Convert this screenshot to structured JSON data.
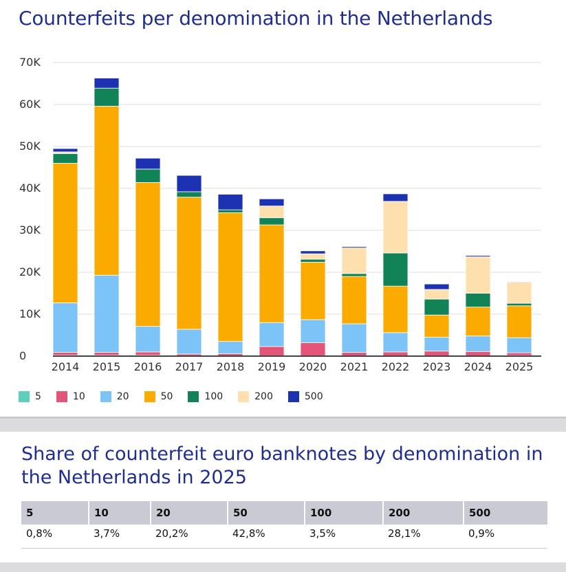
{
  "chart_title": "Counterfeits per denomination in the Netherlands",
  "colors": {
    "5": "#5ecfba",
    "10": "#e45479",
    "20": "#7cc4f7",
    "50": "#fbab00",
    "100": "#128257",
    "200": "#fde0ae",
    "500": "#1d32b2"
  },
  "chart_data": {
    "type": "bar",
    "stacked": true,
    "title": "Counterfeits per denomination in the Netherlands",
    "xlabel": "",
    "ylabel": "",
    "ylim": [
      0,
      70000
    ],
    "y_ticks": [
      0,
      10000,
      20000,
      30000,
      40000,
      50000,
      60000,
      70000
    ],
    "y_tick_labels": [
      "0",
      "10K",
      "20K",
      "30K",
      "40K",
      "50K",
      "60K",
      "70K"
    ],
    "grid": true,
    "legend_position": "bottom-left",
    "categories": [
      "2014",
      "2015",
      "2016",
      "2017",
      "2018",
      "2019",
      "2020",
      "2021",
      "2022",
      "2023",
      "2024",
      "2025"
    ],
    "series": [
      {
        "name": "5",
        "values": [
          200,
          200,
          200,
          100,
          100,
          100,
          100,
          100,
          100,
          100,
          100,
          150
        ]
      },
      {
        "name": "10",
        "values": [
          700,
          700,
          800,
          400,
          500,
          2200,
          3100,
          800,
          900,
          1100,
          1000,
          650
        ]
      },
      {
        "name": "20",
        "values": [
          11800,
          18400,
          6100,
          5900,
          2900,
          5700,
          5500,
          6800,
          4600,
          3300,
          3700,
          3600
        ]
      },
      {
        "name": "50",
        "values": [
          33300,
          40300,
          34300,
          31500,
          30700,
          23300,
          13700,
          11300,
          11100,
          5300,
          6900,
          7600
        ]
      },
      {
        "name": "100",
        "values": [
          2300,
          4300,
          3200,
          1300,
          700,
          1700,
          700,
          700,
          7900,
          3800,
          3300,
          600
        ]
      },
      {
        "name": "200",
        "values": [
          400,
          0,
          0,
          0,
          0,
          2800,
          1300,
          6100,
          12300,
          2300,
          8700,
          5000
        ]
      },
      {
        "name": "500",
        "values": [
          800,
          2400,
          2600,
          3900,
          3700,
          1700,
          700,
          300,
          1800,
          1300,
          300,
          150
        ]
      }
    ]
  },
  "share": {
    "title": "Share of counterfeit euro banknotes by denomination in the Netherlands in 2025",
    "headers": [
      "5",
      "10",
      "20",
      "50",
      "100",
      "200",
      "500"
    ],
    "values": [
      "0,8%",
      "3,7%",
      "20,2%",
      "42,8%",
      "3,5%",
      "28,1%",
      "0,9%"
    ]
  }
}
